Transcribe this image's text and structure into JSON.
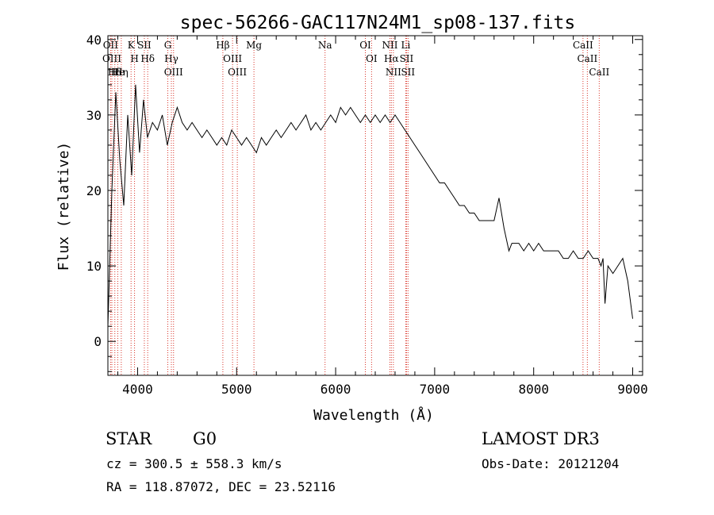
{
  "header": {
    "title": "spec-56266-GAC117N24M1_sp08-137.fits"
  },
  "chart_data": {
    "type": "line",
    "title": "spec-56266-GAC117N24M1_sp08-137.fits",
    "xlabel": "Wavelength (Å)",
    "ylabel": "Flux (relative)",
    "xlim": [
      3700,
      9100
    ],
    "ylim": [
      -4.5,
      40.5
    ],
    "xticks": [
      4000,
      5000,
      6000,
      7000,
      8000,
      9000
    ],
    "yticks": [
      0,
      10,
      20,
      30,
      40
    ],
    "grid": false,
    "series": [
      {
        "x": [
          3700,
          3740,
          3780,
          3820,
          3860,
          3900,
          3940,
          3980,
          4020,
          4060,
          4100,
          4150,
          4200,
          4250,
          4300,
          4350,
          4400,
          4450,
          4500,
          4550,
          4600,
          4650,
          4700,
          4750,
          4800,
          4850,
          4900,
          4950,
          5000,
          5050,
          5100,
          5150,
          5200,
          5250,
          5300,
          5350,
          5400,
          5450,
          5500,
          5550,
          5600,
          5650,
          5700,
          5750,
          5800,
          5850,
          5900,
          5950,
          6000,
          6050,
          6100,
          6150,
          6200,
          6250,
          6300,
          6350,
          6400,
          6450,
          6500,
          6550,
          6600,
          6650,
          6700,
          6750,
          6800,
          6850,
          6900,
          6950,
          7000,
          7050,
          7100,
          7150,
          7200,
          7250,
          7300,
          7350,
          7400,
          7450,
          7500,
          7550,
          7600,
          7650,
          7700,
          7750,
          7780,
          7800,
          7850,
          7900,
          7950,
          8000,
          8050,
          8100,
          8150,
          8200,
          8250,
          8300,
          8350,
          8400,
          8450,
          8500,
          8550,
          8600,
          8650,
          8680,
          8700,
          8720,
          8750,
          8800,
          8850,
          8900,
          8950,
          9000
        ],
        "y": [
          2,
          20,
          33,
          24,
          18,
          30,
          22,
          34,
          25,
          32,
          27,
          29,
          28,
          30,
          26,
          29,
          31,
          29,
          28,
          29,
          28,
          27,
          28,
          27,
          26,
          27,
          26,
          28,
          27,
          26,
          27,
          26,
          25,
          27,
          26,
          27,
          28,
          27,
          28,
          29,
          28,
          29,
          30,
          28,
          29,
          28,
          29,
          30,
          29,
          31,
          30,
          31,
          30,
          29,
          30,
          29,
          30,
          29,
          30,
          29,
          30,
          29,
          28,
          27,
          26,
          25,
          24,
          23,
          22,
          21,
          21,
          20,
          19,
          18,
          18,
          17,
          17,
          16,
          16,
          16,
          16,
          19,
          15,
          12,
          13,
          13,
          13,
          12,
          13,
          12,
          13,
          12,
          12,
          12,
          12,
          11,
          11,
          12,
          11,
          11,
          12,
          11,
          11,
          10,
          11,
          5,
          10,
          9,
          10,
          11,
          8,
          3
        ]
      }
    ],
    "line_markers": [
      {
        "label": "Hδ",
        "x": 3770
      },
      {
        "label": "OII",
        "x": 3727
      },
      {
        "label": "OIII",
        "x": 3740
      },
      {
        "label": "He",
        "x": 3800
      },
      {
        "label": "Hη",
        "x": 3835
      },
      {
        "label": "K",
        "x": 3934
      },
      {
        "label": "H",
        "x": 3969
      },
      {
        "label": "SII",
        "x": 4068
      },
      {
        "label": "Hδ",
        "x": 4102
      },
      {
        "label": "OIII",
        "x": 4363
      },
      {
        "label": "Hγ",
        "x": 4341
      },
      {
        "label": "G",
        "x": 4305
      },
      {
        "label": "Hβ",
        "x": 4861
      },
      {
        "label": "OIII",
        "x": 4959
      },
      {
        "label": "OIII",
        "x": 5007
      },
      {
        "label": "Mg",
        "x": 5175
      },
      {
        "label": "Na",
        "x": 5893
      },
      {
        "label": "OI",
        "x": 6300
      },
      {
        "label": "OI",
        "x": 6363
      },
      {
        "label": "Hα",
        "x": 6563
      },
      {
        "label": "NII",
        "x": 6548
      },
      {
        "label": "NII",
        "x": 6583
      },
      {
        "label": "SII",
        "x": 6716
      },
      {
        "label": "Li",
        "x": 6708
      },
      {
        "label": "SII",
        "x": 6731
      },
      {
        "label": "CaII",
        "x": 8498
      },
      {
        "label": "CaII",
        "x": 8542
      },
      {
        "label": "CaII",
        "x": 8662
      }
    ]
  },
  "info": {
    "class": "STAR",
    "subclass": "G0",
    "survey": "LAMOST DR3",
    "cz": "cz = 300.5 ± 558.3 km/s",
    "obs_date": "Obs-Date: 20121204",
    "coords": "RA = 118.87072, DEC =  23.52116"
  }
}
